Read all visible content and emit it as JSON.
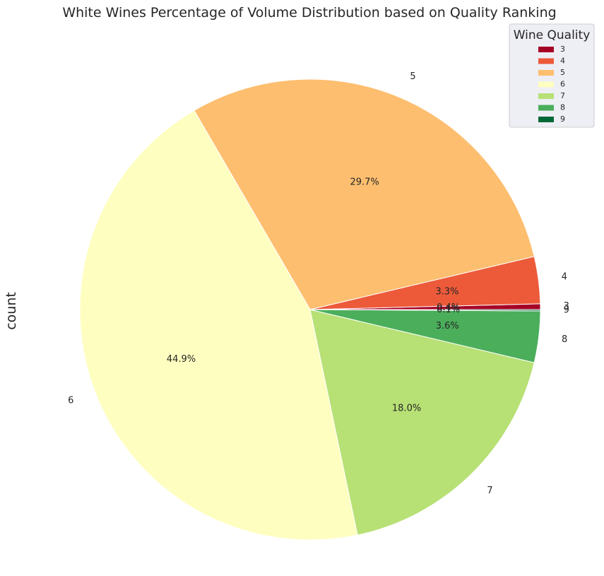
{
  "chart_data": {
    "type": "pie",
    "title": "White Wines Percentage of Volume Distribution based on Quality Ranking",
    "ylabel": "count",
    "categories": [
      "3",
      "4",
      "5",
      "6",
      "7",
      "8",
      "9"
    ],
    "values": [
      0.4,
      3.3,
      29.7,
      44.9,
      18.0,
      3.6,
      0.1
    ],
    "pct_labels": [
      "0.4%",
      "3.3%",
      "29.7%",
      "44.9%",
      "18.0%",
      "3.6%",
      "0.1%"
    ],
    "colors": [
      "#a50026",
      "#ec5a3a",
      "#fdbe6f",
      "#fefec0",
      "#b7e075",
      "#4bae5b",
      "#006837"
    ],
    "legend": {
      "title": "Wine Quality",
      "placement": "upper-right",
      "entries": [
        "3",
        "4",
        "5",
        "6",
        "7",
        "8",
        "9"
      ]
    }
  }
}
